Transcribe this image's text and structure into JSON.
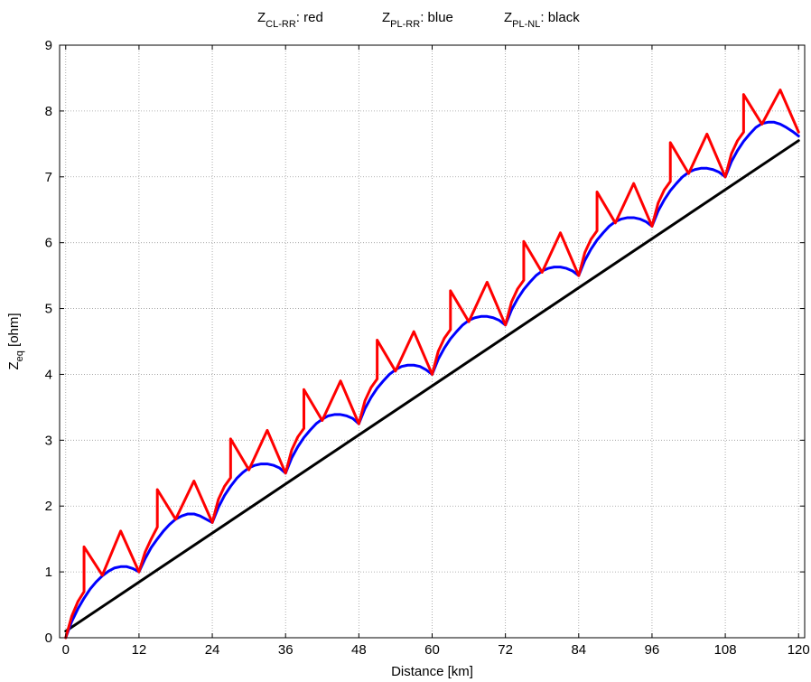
{
  "chart_data": {
    "type": "line",
    "title_parts": [
      {
        "main": "Z",
        "sub": "CL-RR",
        "rest": ": red"
      },
      {
        "main": "Z",
        "sub": "PL-RR",
        "rest": ": blue"
      },
      {
        "main": "Z",
        "sub": "PL-NL",
        "rest": ": black"
      }
    ],
    "xlabel": "Distance [km]",
    "ylabel": {
      "main": "Z",
      "sub": "eq",
      "rest": " [ohm]"
    },
    "xlim": [
      -1,
      121
    ],
    "ylim": [
      0,
      9
    ],
    "xticks": [
      0,
      12,
      24,
      36,
      48,
      60,
      72,
      84,
      96,
      108,
      120
    ],
    "yticks": [
      0,
      1,
      2,
      3,
      4,
      5,
      6,
      7,
      8,
      9
    ],
    "grid": true,
    "series": [
      {
        "color": "#000000",
        "x": [
          0,
          120
        ],
        "y": [
          0.1,
          7.55
        ]
      },
      {
        "color": "#0000ff",
        "x": [
          0,
          1,
          2,
          3,
          4,
          5,
          6,
          7,
          8,
          9,
          10,
          11,
          12,
          13,
          14,
          15,
          16,
          17,
          18,
          19,
          20,
          21,
          22,
          23,
          24,
          25,
          26,
          27,
          28,
          29,
          30,
          31,
          32,
          33,
          34,
          35,
          36,
          37,
          38,
          39,
          40,
          41,
          42,
          43,
          44,
          45,
          46,
          47,
          48,
          49,
          50,
          51,
          52,
          53,
          54,
          55,
          56,
          57,
          58,
          59,
          60,
          61,
          62,
          63,
          64,
          65,
          66,
          67,
          68,
          69,
          70,
          71,
          72,
          73,
          74,
          75,
          76,
          77,
          78,
          79,
          80,
          81,
          82,
          83,
          84,
          85,
          86,
          87,
          88,
          89,
          90,
          91,
          92,
          93,
          94,
          95,
          96,
          97,
          98,
          99,
          100,
          101,
          102,
          103,
          104,
          105,
          106,
          107,
          108,
          109,
          110,
          111,
          112,
          113,
          114,
          115,
          116,
          117,
          118,
          119,
          120
        ],
        "y": [
          0.0,
          0.25,
          0.44,
          0.6,
          0.74,
          0.85,
          0.94,
          1.01,
          1.06,
          1.08,
          1.08,
          1.05,
          1.0,
          1.2,
          1.37,
          1.5,
          1.62,
          1.72,
          1.8,
          1.85,
          1.88,
          1.88,
          1.85,
          1.8,
          1.75,
          1.98,
          2.16,
          2.3,
          2.42,
          2.51,
          2.58,
          2.62,
          2.64,
          2.64,
          2.62,
          2.58,
          2.5,
          2.73,
          2.9,
          3.04,
          3.15,
          3.25,
          3.32,
          3.37,
          3.39,
          3.39,
          3.37,
          3.33,
          3.25,
          3.48,
          3.65,
          3.79,
          3.9,
          4.0,
          4.07,
          4.12,
          4.14,
          4.14,
          4.12,
          4.07,
          4.0,
          4.23,
          4.4,
          4.54,
          4.65,
          4.75,
          4.82,
          4.86,
          4.88,
          4.88,
          4.86,
          4.82,
          4.75,
          4.98,
          5.15,
          5.29,
          5.4,
          5.5,
          5.57,
          5.61,
          5.63,
          5.63,
          5.61,
          5.57,
          5.5,
          5.73,
          5.9,
          6.04,
          6.15,
          6.25,
          6.32,
          6.36,
          6.38,
          6.38,
          6.36,
          6.32,
          6.25,
          6.48,
          6.65,
          6.79,
          6.9,
          7.0,
          7.07,
          7.11,
          7.13,
          7.13,
          7.11,
          7.07,
          7.0,
          7.23,
          7.4,
          7.54,
          7.65,
          7.75,
          7.81,
          7.83,
          7.83,
          7.8,
          7.75,
          7.69,
          7.62
        ]
      },
      {
        "color": "#ff0000",
        "x": [
          0,
          1,
          2,
          3,
          3,
          6,
          9,
          12,
          13,
          14,
          15,
          15,
          18,
          21,
          24,
          25,
          26,
          27,
          27,
          30,
          33,
          36,
          37,
          38,
          39,
          39,
          42,
          45,
          48,
          49,
          50,
          51,
          51,
          54,
          57,
          60,
          61,
          62,
          63,
          63,
          66,
          69,
          72,
          73,
          74,
          75,
          75,
          78,
          81,
          84,
          85,
          86,
          87,
          87,
          90,
          93,
          96,
          97,
          98,
          99,
          99,
          102,
          105,
          108,
          109,
          110,
          111,
          111,
          114,
          117,
          120
        ],
        "y": [
          0.0,
          0.33,
          0.55,
          0.7,
          1.38,
          0.95,
          1.62,
          1.0,
          1.3,
          1.5,
          1.68,
          2.25,
          1.8,
          2.38,
          1.75,
          2.1,
          2.3,
          2.43,
          3.02,
          2.55,
          3.15,
          2.5,
          2.85,
          3.05,
          3.18,
          3.77,
          3.3,
          3.9,
          3.25,
          3.6,
          3.8,
          3.93,
          4.52,
          4.05,
          4.65,
          4.0,
          4.35,
          4.55,
          4.68,
          5.27,
          4.8,
          5.4,
          4.75,
          5.1,
          5.3,
          5.43,
          6.02,
          5.55,
          6.15,
          5.5,
          5.85,
          6.05,
          6.18,
          6.77,
          6.3,
          6.9,
          6.25,
          6.6,
          6.8,
          6.93,
          7.52,
          7.05,
          7.65,
          7.0,
          7.35,
          7.55,
          7.68,
          8.25,
          7.8,
          8.32,
          7.68
        ]
      }
    ]
  }
}
